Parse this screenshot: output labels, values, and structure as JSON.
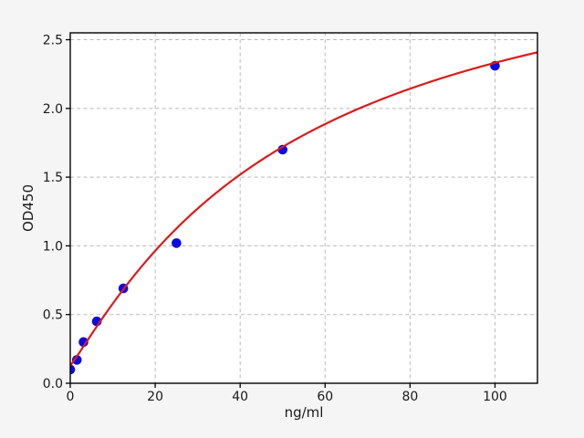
{
  "chart_data": {
    "type": "scatter",
    "title": "",
    "xlabel": "ng/ml",
    "ylabel": "OD450",
    "xlim": [
      0,
      110
    ],
    "ylim": [
      0,
      2.55
    ],
    "xtick_values": [
      0,
      20,
      40,
      60,
      80,
      100
    ],
    "xtick_labels": [
      "0",
      "20",
      "40",
      "60",
      "80",
      "100"
    ],
    "ytick_values": [
      0,
      0.5,
      1.0,
      1.5,
      2.0,
      2.5
    ],
    "ytick_labels": [
      "0.0",
      "0.5",
      "1.0",
      "1.5",
      "2.0",
      "2.5"
    ],
    "grid": true,
    "legend": "none",
    "series": [
      {
        "name": "standards",
        "type": "scatter",
        "marker": "circle",
        "color": "#0b0be0",
        "x": [
          0,
          1.56,
          3.12,
          6.25,
          12.5,
          25,
          50,
          100
        ],
        "y": [
          0.1,
          0.17,
          0.3,
          0.45,
          0.69,
          1.02,
          1.7,
          2.31
        ]
      },
      {
        "name": "fit-curve",
        "type": "line",
        "color": "#dd1a1a",
        "fit": {
          "model": "4pl",
          "a": 0.13,
          "b": 1.1,
          "c": 54,
          "d": 3.45,
          "x_start": 0,
          "x_end": 110
        }
      }
    ],
    "colors": {
      "figure_background": "#f5f5f5",
      "plot_background": "#ffffff",
      "grid": "#b9b9b9",
      "axis": "#000000",
      "text": "#1a1a1a"
    }
  }
}
